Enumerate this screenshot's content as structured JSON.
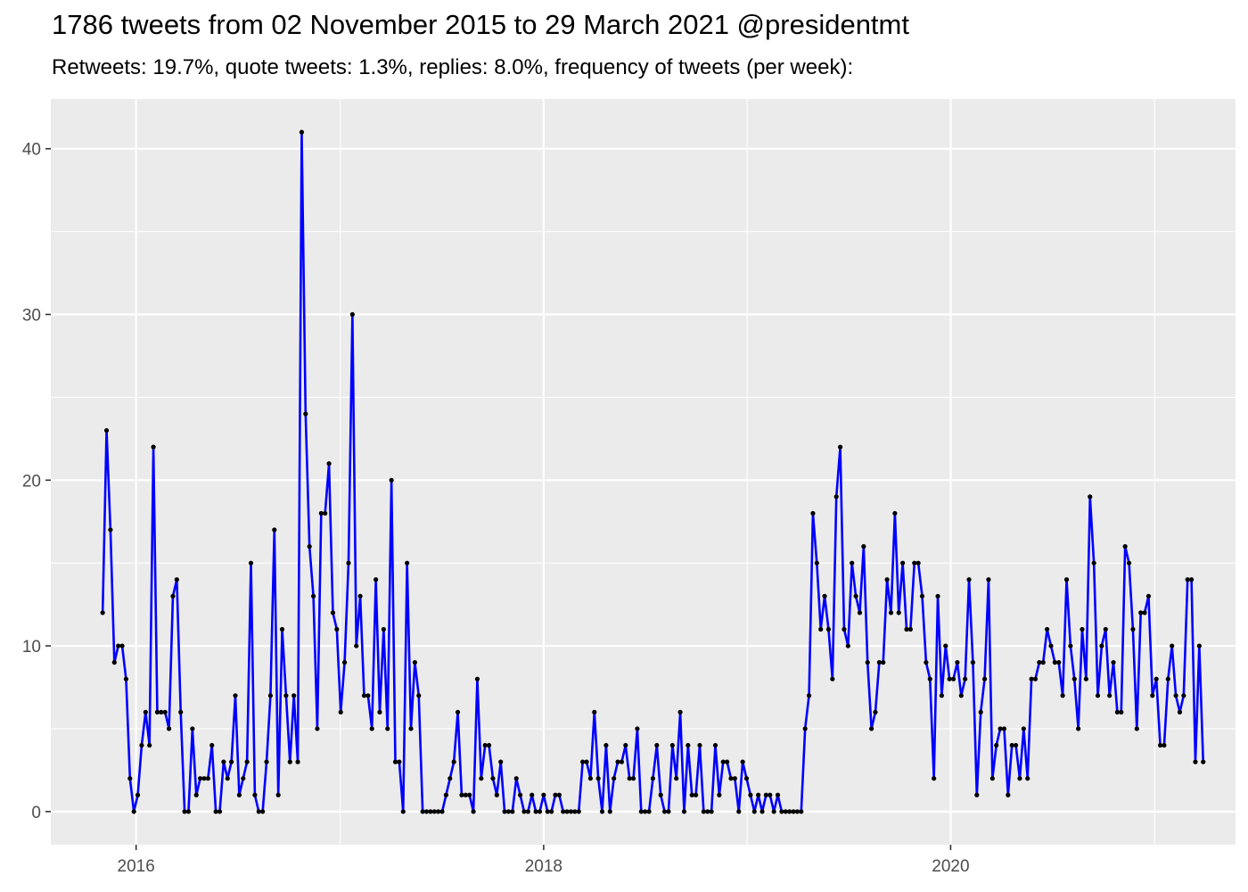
{
  "chart_data": {
    "type": "line",
    "title": "1786 tweets from 02 November 2015 to 29 March 2021 @presidentmt",
    "subtitle": "Retweets: 19.7%, quote tweets: 1.3%, replies: 8.0%, frequency of tweets (per week):",
    "xlabel": "",
    "ylabel": "",
    "x_ticks": [
      {
        "label": "2016",
        "date": "2016-01-01"
      },
      {
        "label": "2018",
        "date": "2018-01-01"
      },
      {
        "label": "2020",
        "date": "2020-01-01"
      }
    ],
    "x_minor_ticks": [
      "2017-01-01",
      "2019-01-01",
      "2021-01-01"
    ],
    "xlim": [
      "2015-08-01",
      "2021-05-26"
    ],
    "y_ticks": [
      0,
      10,
      20,
      30,
      40
    ],
    "ylim": [
      -2,
      43
    ],
    "grid": true,
    "colors": {
      "panel": "#ebebeb",
      "grid": "#ffffff",
      "line": "#0000ff",
      "point": "#000000"
    },
    "series": [
      {
        "x_start": "2015-11-02",
        "x_step_days": 7,
        "values": [
          12,
          23,
          17,
          9,
          10,
          10,
          8,
          2,
          0,
          1,
          4,
          6,
          4,
          22,
          6,
          6,
          6,
          5,
          13,
          14,
          6,
          0,
          0,
          5,
          1,
          2,
          2,
          2,
          4,
          0,
          0,
          3,
          2,
          3,
          7,
          1,
          2,
          3,
          15,
          1,
          0,
          0,
          3,
          7,
          17,
          1,
          11,
          7,
          3,
          7,
          3,
          41,
          24,
          16,
          13,
          5,
          18,
          18,
          21,
          12,
          11,
          6,
          9,
          15,
          30,
          10,
          13,
          7,
          7,
          5,
          14,
          6,
          11,
          5,
          20,
          3,
          3,
          0,
          15,
          5,
          9,
          7,
          0,
          0,
          0,
          0,
          0,
          0,
          1,
          2,
          3,
          6,
          1,
          1,
          1,
          0,
          8,
          2,
          4,
          4,
          2,
          1,
          3,
          0,
          0,
          0,
          2,
          1,
          0,
          0,
          1,
          0,
          0,
          1,
          0,
          0,
          1,
          1,
          0,
          0,
          0,
          0,
          0,
          3,
          3,
          2,
          6,
          2,
          0,
          4,
          0,
          2,
          3,
          3,
          4,
          2,
          2,
          5,
          0,
          0,
          0,
          2,
          4,
          1,
          0,
          0,
          4,
          2,
          6,
          0,
          4,
          1,
          1,
          4,
          0,
          0,
          0,
          4,
          1,
          3,
          3,
          2,
          2,
          0,
          3,
          2,
          1,
          0,
          1,
          0,
          1,
          1,
          0,
          1,
          0,
          0,
          0,
          0,
          0,
          0,
          5,
          7,
          18,
          15,
          11,
          13,
          11,
          8,
          19,
          22,
          11,
          10,
          15,
          13,
          12,
          16,
          9,
          5,
          6,
          9,
          9,
          14,
          12,
          18,
          12,
          15,
          11,
          11,
          15,
          15,
          13,
          9,
          8,
          2,
          13,
          7,
          10,
          8,
          8,
          9,
          7,
          8,
          14,
          9,
          1,
          6,
          8,
          14,
          2,
          4,
          5,
          5,
          1,
          4,
          4,
          2,
          5,
          2,
          8,
          8,
          9,
          9,
          11,
          10,
          9,
          9,
          7,
          14,
          10,
          8,
          5,
          11,
          8,
          19,
          15,
          7,
          10,
          11,
          7,
          9,
          6,
          6,
          16,
          15,
          11,
          5,
          12,
          12,
          13,
          7,
          8,
          4,
          4,
          8,
          10,
          7,
          6,
          7,
          14,
          14,
          3,
          10,
          3
        ]
      }
    ]
  }
}
